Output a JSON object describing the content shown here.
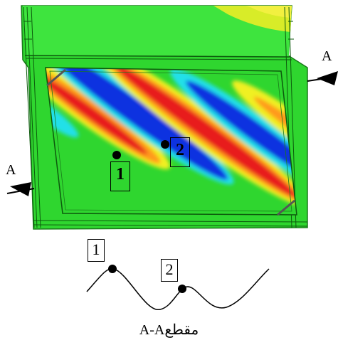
{
  "figure": {
    "section_marker_right": "A",
    "section_marker_left": "A",
    "point_label_1": "1",
    "point_label_2": "2",
    "profile_label_1": "1",
    "profile_label_2": "2",
    "caption_text": "A-Aمقطع",
    "colors": {
      "green": "#2fd62f",
      "blue": "#1030e0",
      "cyan": "#20e0e8",
      "red": "#e81e1e",
      "orange": "#ff9a1a",
      "yellow": "#f0f020"
    }
  }
}
